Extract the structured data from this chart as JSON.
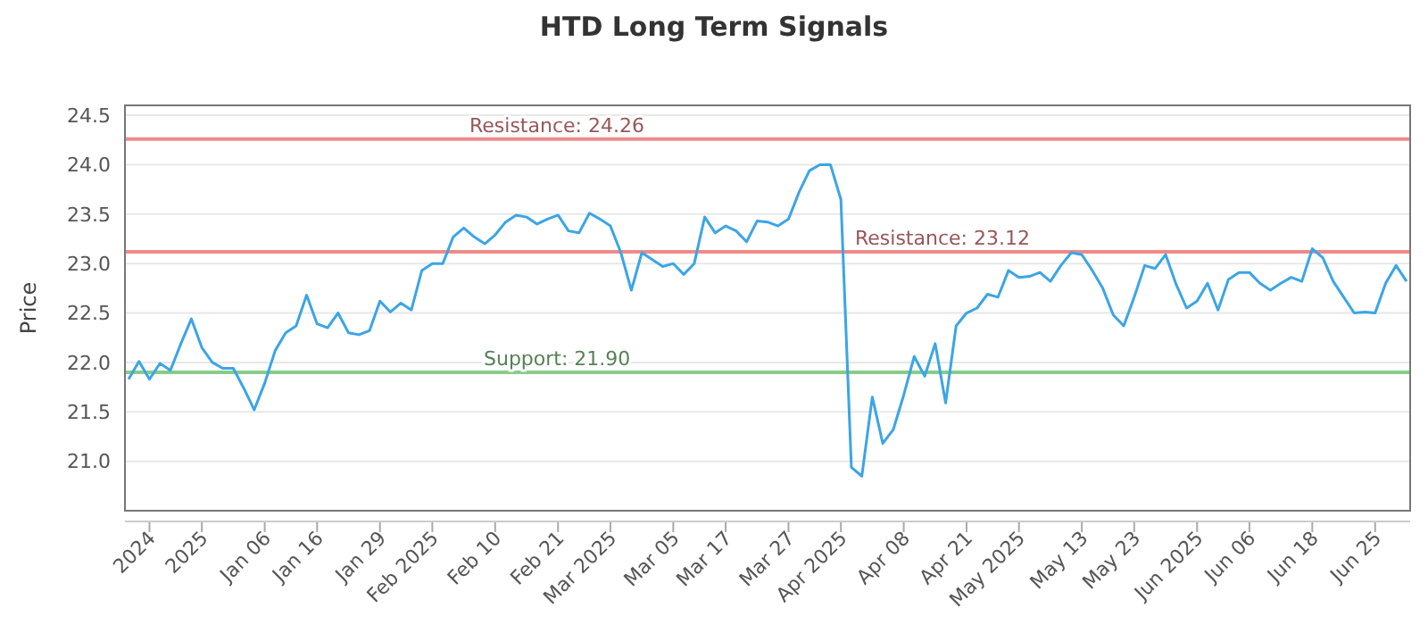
{
  "chart_data": {
    "type": "line",
    "title": "HTD Long Term Signals",
    "ylabel": "Price",
    "categories": [
      null,
      null,
      "2024",
      null,
      null,
      null,
      null,
      "2025",
      null,
      null,
      null,
      null,
      null,
      "Jan 06",
      null,
      null,
      null,
      null,
      "Jan 16",
      null,
      null,
      null,
      null,
      null,
      "Jan 29",
      null,
      null,
      null,
      null,
      "Feb 2025",
      null,
      null,
      null,
      null,
      null,
      "Feb 10",
      null,
      null,
      null,
      null,
      null,
      "Feb 21",
      null,
      null,
      null,
      null,
      "Mar 2025",
      null,
      null,
      null,
      null,
      null,
      "Mar 05",
      null,
      null,
      null,
      null,
      "Mar 17",
      null,
      null,
      null,
      null,
      null,
      "Mar 27",
      null,
      null,
      null,
      null,
      "Apr 2025",
      null,
      null,
      null,
      null,
      null,
      "Apr 08",
      null,
      null,
      null,
      null,
      null,
      "Apr 21",
      null,
      null,
      null,
      null,
      "May 2025",
      null,
      null,
      null,
      null,
      null,
      "May 13",
      null,
      null,
      null,
      null,
      "May 23",
      null,
      null,
      null,
      null,
      null,
      "Jun 2025",
      null,
      null,
      null,
      null,
      "Jun 06",
      null,
      null,
      null,
      null,
      null,
      "Jun 18",
      null,
      null,
      null,
      null,
      null,
      "Jun 25",
      null,
      null,
      null
    ],
    "series": [
      {
        "color": "#3ba5e6",
        "values": [
          21.83,
          22.01,
          21.83,
          21.99,
          21.92,
          22.19,
          22.44,
          22.15,
          22.0,
          21.94,
          21.94,
          21.74,
          21.52,
          21.79,
          22.12,
          22.3,
          22.37,
          22.68,
          22.39,
          22.35,
          22.5,
          22.3,
          22.28,
          22.32,
          22.62,
          22.51,
          22.6,
          22.53,
          22.93,
          23.0,
          23.0,
          23.27,
          23.36,
          23.27,
          23.2,
          23.29,
          23.42,
          23.49,
          23.47,
          23.4,
          23.45,
          23.49,
          23.33,
          23.31,
          23.51,
          23.45,
          23.38,
          23.11,
          22.73,
          23.11,
          23.04,
          22.97,
          23.0,
          22.89,
          23.0,
          23.47,
          23.31,
          23.38,
          23.33,
          23.22,
          23.43,
          23.42,
          23.38,
          23.45,
          23.72,
          23.94,
          24.0,
          24.0,
          23.65,
          20.94,
          20.85,
          21.65,
          21.18,
          21.32,
          21.67,
          22.06,
          21.86,
          22.19,
          21.59,
          22.37,
          22.5,
          22.55,
          22.69,
          22.66,
          22.93,
          22.86,
          22.87,
          22.91,
          22.82,
          22.98,
          23.11,
          23.09,
          22.93,
          22.75,
          22.48,
          22.37,
          22.66,
          22.98,
          22.95,
          23.09,
          22.79,
          22.55,
          22.62,
          22.8,
          22.53,
          22.84,
          22.91,
          22.91,
          22.8,
          22.73,
          22.8,
          22.86,
          22.82,
          23.15,
          23.06,
          22.82,
          22.66,
          22.5,
          22.51,
          22.5,
          22.8,
          22.98,
          22.82
        ]
      }
    ],
    "ylim": [
      20.5,
      24.6
    ],
    "yticks": [
      {
        "value": 21,
        "label": "21.0"
      },
      {
        "value": 21.5,
        "label": "21.5"
      },
      {
        "value": 22,
        "label": "22.0"
      },
      {
        "value": 22.5,
        "label": "22.5"
      },
      {
        "value": 23,
        "label": "23.0"
      },
      {
        "value": 23.5,
        "label": "23.5"
      },
      {
        "value": 24,
        "label": "24.0"
      },
      {
        "value": 24.5,
        "label": "24.5"
      }
    ],
    "grid": "y",
    "marker": "none",
    "line_style": "solid",
    "ref_lines": [
      {
        "axis": "y",
        "value": 24.26,
        "label": "Resistance: 24.26",
        "color": "#ee8a8a"
      },
      {
        "axis": "y",
        "value": 23.12,
        "label": "Resistance: 23.12",
        "color": "#ee8a8a"
      },
      {
        "axis": "y",
        "value": 21.9,
        "label": "Support: 21.90",
        "color": "#88cc88"
      }
    ]
  }
}
